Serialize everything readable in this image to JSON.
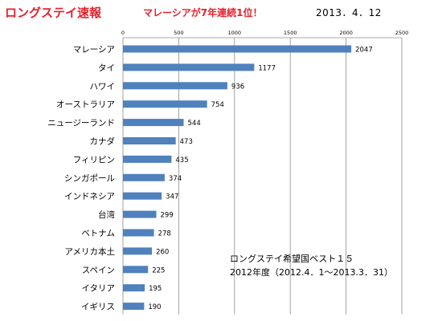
{
  "header": {
    "title": "ロングステイ速報",
    "headline": "マレーシアが7年連続1位！",
    "date": "2013．4．12"
  },
  "annotation": {
    "line1": "ロングステイ希望国ベスト１５",
    "line2": "2012年度（2012.4．1～2013.3．31）"
  },
  "chart_data": {
    "type": "bar",
    "orientation": "horizontal",
    "categories": [
      "マレーシア",
      "タイ",
      "ハワイ",
      "オーストラリア",
      "ニュージーランド",
      "カナダ",
      "フィリピン",
      "シンガポール",
      "インドネシア",
      "台湾",
      "ベトナム",
      "アメリカ本土",
      "スペイン",
      "イタリア",
      "イギリス"
    ],
    "values": [
      2047,
      1177,
      936,
      754,
      544,
      473,
      435,
      374,
      347,
      299,
      278,
      260,
      225,
      195,
      190
    ],
    "xlim": [
      0,
      2500
    ],
    "ticks": [
      0,
      500,
      1000,
      1500,
      2000,
      2500
    ],
    "tick_labels": [
      "0",
      "500",
      "1000",
      "1500",
      "2000",
      "2500"
    ],
    "axis_position": "top",
    "grid": true,
    "bar_color": "#4f81bd",
    "data_labels": true
  }
}
